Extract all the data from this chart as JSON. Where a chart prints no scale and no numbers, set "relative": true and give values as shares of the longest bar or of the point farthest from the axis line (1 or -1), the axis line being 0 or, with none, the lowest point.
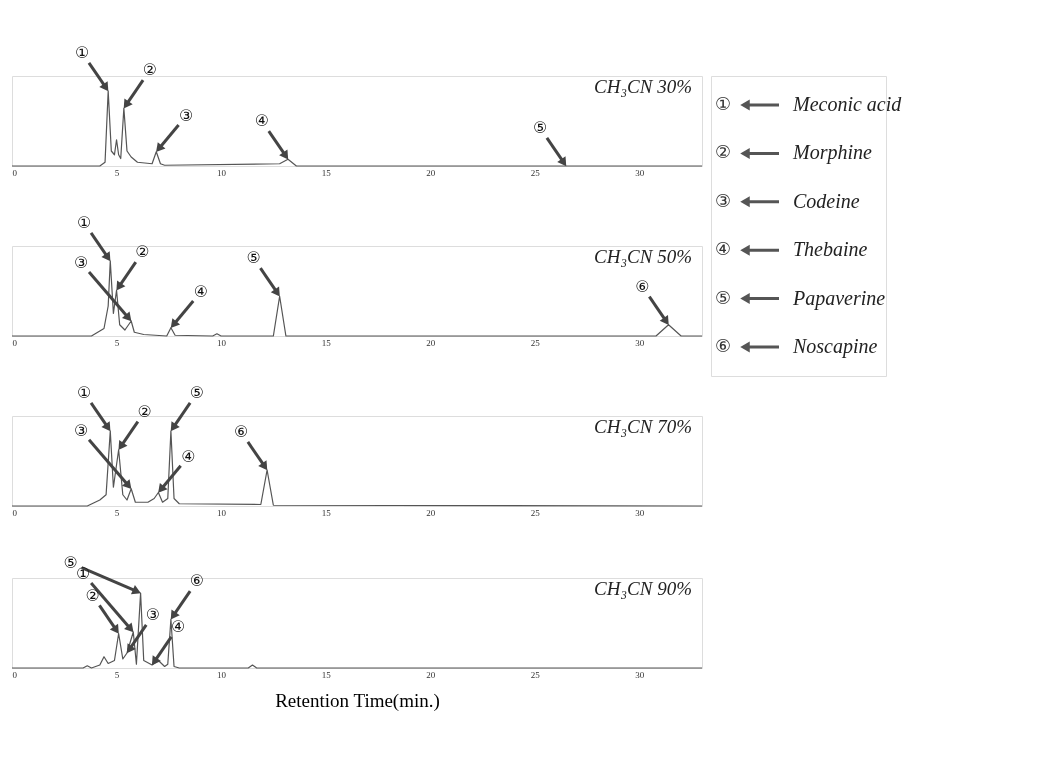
{
  "chart_data": [
    {
      "type": "line",
      "relative": true,
      "title": "CH₃CN 30%",
      "xlim": [
        0,
        33
      ],
      "xticks": [
        0,
        5,
        10,
        15,
        20,
        25,
        30
      ],
      "grid": false,
      "marker": "none",
      "x": [
        0,
        4.2,
        4.45,
        4.6,
        4.75,
        4.9,
        5.0,
        5.1,
        5.2,
        5.35,
        5.5,
        5.7,
        6.0,
        6.7,
        6.9,
        7.1,
        7.3,
        12.8,
        13.2,
        13.6,
        33
      ],
      "series": [
        {
          "color": "#555555",
          "values": [
            0,
            0,
            0.05,
            1,
            0.2,
            0.15,
            0.35,
            0.15,
            0.1,
            0.77,
            0.2,
            0.12,
            0.05,
            0.03,
            0.19,
            0.03,
            0.01,
            0.03,
            0.09,
            0,
            0
          ]
        }
      ],
      "annotations": [
        {
          "text": "①",
          "x": 4.6,
          "y": 1.0
        },
        {
          "text": "②",
          "x": 5.35,
          "y": 0.77
        },
        {
          "text": "③",
          "x": 6.9,
          "y": 0.19
        },
        {
          "text": "④",
          "x": 13.2,
          "y": 0.09
        },
        {
          "text": "⑤",
          "x": 26.5,
          "y": 0
        },
        "①",
        "Meconic acid",
        "②",
        "Morphine",
        "③",
        "Codeine",
        "④",
        "Thebaine",
        "⑤",
        "Papaverine",
        "⑥",
        "Noscapine"
      ]
    },
    {
      "type": "line",
      "relative": true,
      "title": "CH₃CN 50%",
      "xlim": [
        0,
        33
      ],
      "xticks": [
        0,
        5,
        10,
        15,
        20,
        25,
        30
      ],
      "grid": false,
      "marker": "none",
      "x": [
        0,
        3.8,
        4.4,
        4.6,
        4.7,
        4.85,
        5.0,
        5.15,
        5.4,
        5.7,
        5.85,
        6.3,
        7.4,
        7.6,
        7.8,
        9.6,
        9.8,
        10.0,
        12.5,
        12.8,
        13.1,
        30.8,
        31.4,
        32.0,
        33
      ],
      "series": [
        {
          "color": "#555555",
          "values": [
            0,
            0,
            0.1,
            0.4,
            1,
            0.3,
            0.61,
            0.15,
            0.08,
            0.2,
            0.05,
            0.02,
            0,
            0.11,
            0.01,
            0,
            0.03,
            0,
            0,
            0.53,
            0,
            0,
            0.15,
            0,
            0
          ]
        }
      ],
      "annotations": [
        {
          "text": "①",
          "x": 4.7,
          "y": 1.0
        },
        {
          "text": "②",
          "x": 5.0,
          "y": 0.61
        },
        {
          "text": "③",
          "x": 5.7,
          "y": 0.2
        },
        {
          "text": "④",
          "x": 7.6,
          "y": 0.11
        },
        {
          "text": "⑤",
          "x": 12.8,
          "y": 0.53
        },
        {
          "text": "⑥",
          "x": 31.4,
          "y": 0.15
        }
      ]
    },
    {
      "type": "line",
      "relative": true,
      "title": "CH₃CN 70%",
      "xlim": [
        0,
        33
      ],
      "xticks": [
        0,
        5,
        10,
        15,
        20,
        25,
        30
      ],
      "grid": false,
      "marker": "none",
      "x": [
        0,
        3.6,
        4.2,
        4.5,
        4.7,
        4.85,
        5.1,
        5.3,
        5.5,
        5.7,
        5.9,
        6.5,
        6.8,
        7.0,
        7.2,
        7.45,
        7.6,
        7.75,
        8.0,
        11.9,
        12.2,
        12.5,
        33
      ],
      "series": [
        {
          "color": "#555555",
          "values": [
            0,
            0,
            0.08,
            0.15,
            1,
            0.25,
            0.75,
            0.15,
            0.08,
            0.23,
            0.05,
            0.05,
            0.1,
            0.18,
            0.05,
            0.1,
            1,
            0.1,
            0.03,
            0.02,
            0.48,
            0.01,
            0
          ]
        }
      ],
      "annotations": [
        {
          "text": "①",
          "x": 4.7,
          "y": 1.0
        },
        {
          "text": "②",
          "x": 5.1,
          "y": 0.75
        },
        {
          "text": "③",
          "x": 5.7,
          "y": 0.23
        },
        {
          "text": "④",
          "x": 7.0,
          "y": 0.18
        },
        {
          "text": "⑤",
          "x": 7.6,
          "y": 1.0
        },
        {
          "text": "⑥",
          "x": 12.2,
          "y": 0.48
        }
      ]
    },
    {
      "type": "line",
      "relative": true,
      "title": "CH₃CN 90%",
      "xlabel": "Retention Time(min.)",
      "xlim": [
        0,
        33
      ],
      "xticks": [
        0,
        5,
        10,
        15,
        20,
        25,
        30
      ],
      "grid": false,
      "marker": "none",
      "x": [
        0,
        3.4,
        3.6,
        3.8,
        4.2,
        4.4,
        4.6,
        4.9,
        5.1,
        5.3,
        5.5,
        5.8,
        5.95,
        6.15,
        6.3,
        6.7,
        7.0,
        7.3,
        7.45,
        7.6,
        7.75,
        8.0,
        11.3,
        11.5,
        11.7,
        33
      ],
      "series": [
        {
          "color": "#555555",
          "values": [
            0,
            0,
            0.03,
            0,
            0.04,
            0.15,
            0.06,
            0.1,
            0.46,
            0.12,
            0.2,
            0.48,
            0.05,
            1,
            0.1,
            0.04,
            0.1,
            0.02,
            0.05,
            0.65,
            0.02,
            0,
            0,
            0.04,
            0,
            0
          ]
        }
      ],
      "annotations": [
        {
          "text": "②",
          "x": 5.1,
          "y": 0.46
        },
        {
          "text": "③",
          "x": 5.5,
          "y": 0.2
        },
        {
          "text": "①",
          "x": 5.8,
          "y": 0.48
        },
        {
          "text": "④",
          "x": 6.7,
          "y": 0.04
        },
        {
          "text": "⑤",
          "x": 6.15,
          "y": 1.0
        },
        {
          "text": "⑥",
          "x": 7.6,
          "y": 0.65
        }
      ]
    }
  ]
}
